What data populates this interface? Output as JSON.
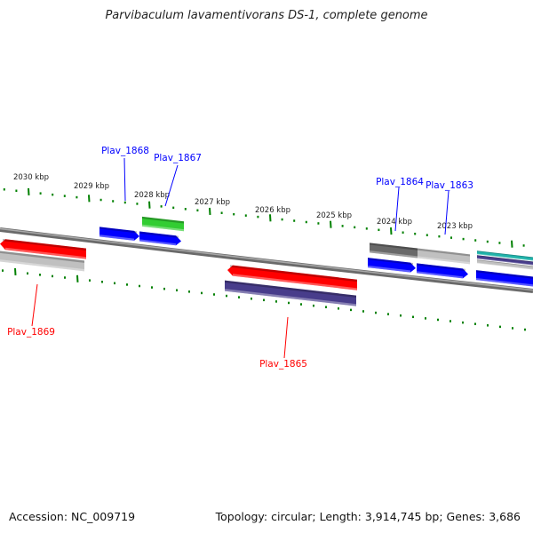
{
  "title": "Parvibaculum lavamentivorans DS-1, complete genome",
  "footer": {
    "accession": "Accession: NC_009719",
    "topology": "Topology: circular; Length: 3,914,745 bp; Genes: 3,686"
  },
  "scale_labels": [
    "2030 kbp",
    "2029 kbp",
    "2028 kbp",
    "2027 kbp",
    "2026 kbp",
    "2025 kbp",
    "2024 kbp",
    "2023 kbp"
  ],
  "gene_labels": [
    {
      "text": "Plav_1868",
      "color": "#0000ff"
    },
    {
      "text": "Plav_1867",
      "color": "#0000ff"
    },
    {
      "text": "Plav_1864",
      "color": "#0000ff"
    },
    {
      "text": "Plav_1863",
      "color": "#0000ff"
    },
    {
      "text": "Plav_1869",
      "color": "#ff0000"
    },
    {
      "text": "Plav_1865",
      "color": "#ff0000"
    }
  ],
  "colors": {
    "forward_cds": "#0000ff",
    "reverse_cds": "#ff0000",
    "tick": "#008000",
    "backbone": "#808080"
  }
}
